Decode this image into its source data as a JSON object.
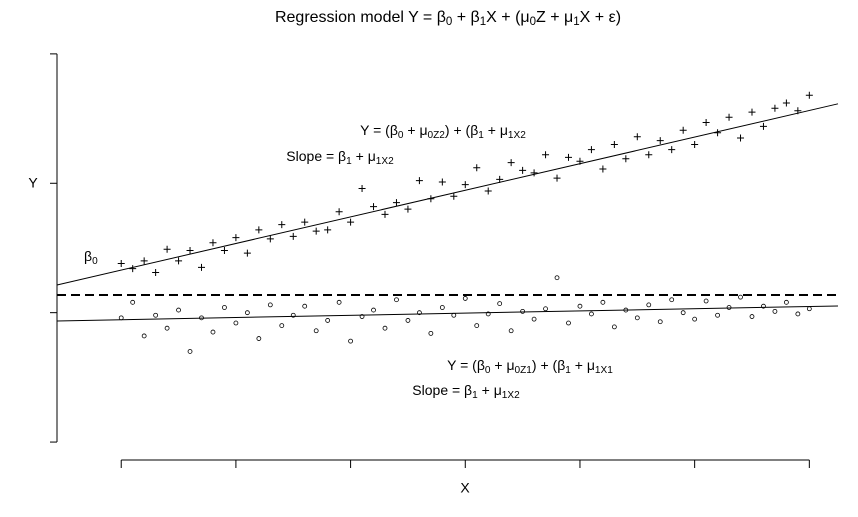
{
  "chart_data": {
    "type": "scatter",
    "title": [
      "Regression model Y = β",
      "0",
      " + β",
      "1",
      "X + (μ",
      "0",
      "Z + μ",
      "1",
      "X + ε)"
    ],
    "xlabel": "X",
    "ylabel": "Y",
    "xlim": [
      -0.56,
      6.25
    ],
    "ylim": [
      -0.1,
      3.2
    ],
    "xticks": [
      0,
      1,
      2,
      3,
      4,
      5,
      6
    ],
    "yticks": [
      0,
      1,
      2,
      3
    ],
    "x": [
      0,
      0.1,
      0.2,
      0.3,
      0.4,
      0.5,
      0.6,
      0.7,
      0.8,
      0.9,
      1,
      1.1,
      1.2,
      1.3,
      1.4,
      1.5,
      1.6,
      1.7,
      1.8,
      1.9,
      2,
      2.1,
      2.2,
      2.3,
      2.4,
      2.5,
      2.6,
      2.7,
      2.8,
      2.9,
      3,
      3.1,
      3.2,
      3.3,
      3.4,
      3.5,
      3.6,
      3.7,
      3.8,
      3.9,
      4,
      4.1,
      4.2,
      4.3,
      4.4,
      4.5,
      4.6,
      4.7,
      4.8,
      4.9,
      5,
      5.1,
      5.2,
      5.3,
      5.4,
      5.5,
      5.6,
      5.7,
      5.8,
      5.9,
      6
    ],
    "series": [
      {
        "marker": "plus",
        "color": "#000000",
        "values": [
          1.38,
          1.34,
          1.4,
          1.31,
          1.49,
          1.4,
          1.48,
          1.35,
          1.54,
          1.48,
          1.58,
          1.46,
          1.64,
          1.57,
          1.68,
          1.59,
          1.7,
          1.63,
          1.64,
          1.78,
          1.7,
          1.96,
          1.82,
          1.76,
          1.85,
          1.8,
          2.02,
          1.88,
          2.01,
          1.9,
          1.99,
          2.12,
          1.94,
          2.03,
          2.16,
          2.1,
          2.08,
          2.22,
          2.04,
          2.2,
          2.17,
          2.26,
          2.11,
          2.3,
          2.19,
          2.36,
          2.22,
          2.33,
          2.26,
          2.41,
          2.3,
          2.47,
          2.39,
          2.51,
          2.35,
          2.55,
          2.44,
          2.58,
          2.62,
          2.56,
          2.68
        ]
      },
      {
        "marker": "circle",
        "color": "#000000",
        "values": [
          0.96,
          1.08,
          0.82,
          0.98,
          0.88,
          1.02,
          0.7,
          0.96,
          0.85,
          1.04,
          0.92,
          1.0,
          0.8,
          1.06,
          0.9,
          0.98,
          1.05,
          0.86,
          0.94,
          1.08,
          0.78,
          0.97,
          1.02,
          0.88,
          1.1,
          0.94,
          1.0,
          0.84,
          1.04,
          0.98,
          1.11,
          0.9,
          0.99,
          1.07,
          0.86,
          1.01,
          0.95,
          1.03,
          1.27,
          0.92,
          1.05,
          0.99,
          1.08,
          0.89,
          1.02,
          0.96,
          1.06,
          0.93,
          1.1,
          1.0,
          0.95,
          1.09,
          0.98,
          1.04,
          1.12,
          0.97,
          1.05,
          1.01,
          1.08,
          0.99,
          1.03
        ]
      }
    ],
    "lines": [
      {
        "x": [
          -0.56,
          6.25
        ],
        "y": [
          1.214,
          2.614
        ],
        "dashed": false
      },
      {
        "x": [
          -0.56,
          6.25
        ],
        "y": [
          0.936,
          1.052
        ],
        "dashed": false
      },
      {
        "x": [
          -0.56,
          6.25
        ],
        "y": [
          1.137,
          1.137
        ],
        "dashed": true
      }
    ],
    "annotations": [
      [
        "β",
        "0"
      ],
      [
        "Y = (β",
        "0",
        " + μ",
        "0Z2",
        ") + (β",
        "1",
        " + μ",
        "1X2"
      ],
      [
        "Slope = β",
        "1",
        " + μ",
        "1X2"
      ],
      [
        "Y = (β",
        "0",
        " + μ",
        "0Z1",
        ") + (β",
        "1",
        " + μ",
        "1X1"
      ],
      [
        "Slope = β",
        "1",
        " + μ",
        "1X2"
      ]
    ]
  }
}
